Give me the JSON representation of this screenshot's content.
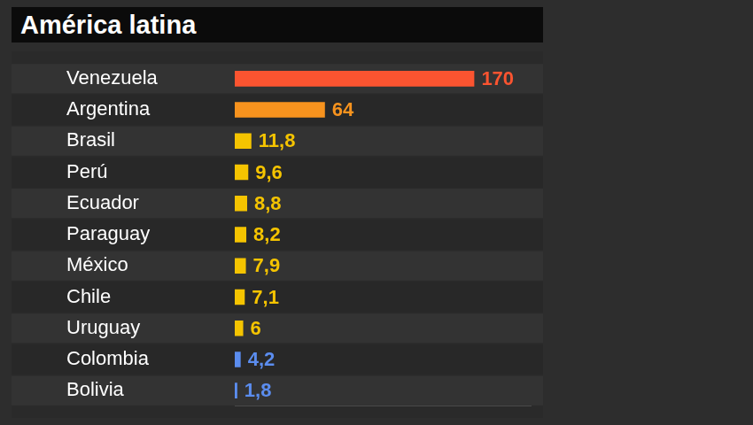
{
  "chart_data": {
    "type": "bar",
    "title": "América latina",
    "orientation": "horizontal",
    "categories": [
      "Venezuela",
      "Argentina",
      "Brasil",
      "Perú",
      "Ecuador",
      "Paraguay",
      "México",
      "Chile",
      "Uruguay",
      "Colombia",
      "Bolivia"
    ],
    "values": [
      170,
      64,
      11.8,
      9.6,
      8.8,
      8.2,
      7.9,
      7.1,
      6,
      4.2,
      1.8
    ],
    "value_labels": [
      "170",
      "64",
      "11,8",
      "9,6",
      "8,8",
      "8,2",
      "7,9",
      "7,1",
      "6",
      "4,2",
      "1,8"
    ],
    "colors": [
      "#fb5430",
      "#f7931e",
      "#f5c400",
      "#f5c400",
      "#f5c400",
      "#f5c400",
      "#f5c400",
      "#f5c400",
      "#f5c400",
      "#5b8def",
      "#5b8def"
    ],
    "xlim": [
      0,
      210
    ],
    "grid": false,
    "data_labels": true,
    "tick_labels": "y"
  }
}
